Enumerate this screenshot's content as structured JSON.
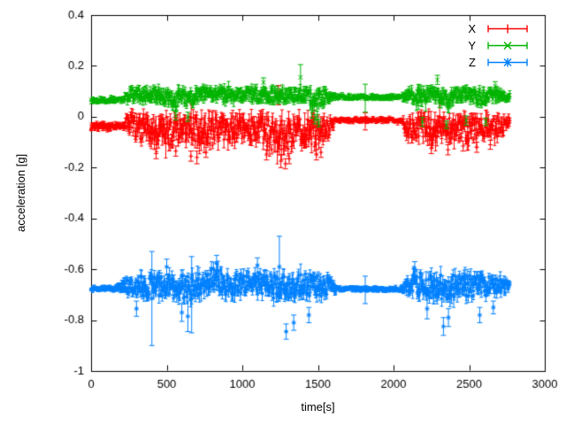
{
  "chart_data": {
    "type": "scatter",
    "style": "errorbars",
    "title": "",
    "xlabel": "time[s]",
    "ylabel": "acceleration [g]",
    "xlim": [
      0,
      3000
    ],
    "ylim": [
      -1,
      0.4
    ],
    "xticks": [
      0,
      500,
      1000,
      1500,
      2000,
      2500,
      3000
    ],
    "yticks": [
      0.4,
      0.2,
      0,
      -0.2,
      -0.4,
      -0.6,
      -0.8,
      -1
    ],
    "grid": false,
    "legend_position": "top-right-inside",
    "t_end": 2770,
    "sample_interval_s": 3.43,
    "axis_color": "#000000",
    "background": "#ffffff",
    "series": [
      {
        "name": "X",
        "color": "#ff0000",
        "marker": "plus",
        "seed": 7,
        "envelope": [
          [
            0,
            -0.038,
            0.013,
            0.009
          ],
          [
            215,
            -0.038,
            0.011,
            0.008
          ],
          [
            235,
            -0.028,
            0.028,
            0.018
          ],
          [
            265,
            -0.025,
            0.036,
            0.024
          ],
          [
            310,
            -0.047,
            0.046,
            0.03
          ],
          [
            360,
            -0.05,
            0.05,
            0.03
          ],
          [
            420,
            -0.06,
            0.055,
            0.034
          ],
          [
            480,
            -0.045,
            0.05,
            0.03
          ],
          [
            525,
            -0.065,
            0.058,
            0.034
          ],
          [
            565,
            -0.04,
            0.046,
            0.028
          ],
          [
            625,
            -0.055,
            0.054,
            0.03
          ],
          [
            680,
            -0.046,
            0.05,
            0.03
          ],
          [
            720,
            -0.068,
            0.06,
            0.034
          ],
          [
            765,
            -0.05,
            0.05,
            0.03
          ],
          [
            805,
            -0.06,
            0.054,
            0.03
          ],
          [
            860,
            -0.04,
            0.046,
            0.028
          ],
          [
            920,
            -0.05,
            0.05,
            0.03
          ],
          [
            980,
            -0.04,
            0.046,
            0.028
          ],
          [
            1040,
            -0.055,
            0.05,
            0.03
          ],
          [
            1100,
            -0.046,
            0.05,
            0.03
          ],
          [
            1160,
            -0.065,
            0.058,
            0.034
          ],
          [
            1225,
            -0.075,
            0.064,
            0.038
          ],
          [
            1270,
            -0.08,
            0.068,
            0.04
          ],
          [
            1325,
            -0.06,
            0.058,
            0.034
          ],
          [
            1385,
            -0.046,
            0.05,
            0.03
          ],
          [
            1445,
            -0.06,
            0.055,
            0.032
          ],
          [
            1505,
            -0.07,
            0.06,
            0.034
          ],
          [
            1560,
            -0.05,
            0.045,
            0.028
          ],
          [
            1598,
            -0.028,
            0.022,
            0.016
          ],
          [
            1615,
            -0.013,
            0.008,
            0.006
          ],
          [
            2055,
            -0.013,
            0.008,
            0.006
          ],
          [
            2080,
            -0.034,
            0.032,
            0.022
          ],
          [
            2135,
            -0.045,
            0.044,
            0.028
          ],
          [
            2200,
            -0.04,
            0.044,
            0.028
          ],
          [
            2265,
            -0.054,
            0.05,
            0.03
          ],
          [
            2325,
            -0.04,
            0.044,
            0.028
          ],
          [
            2385,
            -0.05,
            0.048,
            0.03
          ],
          [
            2445,
            -0.045,
            0.044,
            0.028
          ],
          [
            2505,
            -0.054,
            0.048,
            0.03
          ],
          [
            2565,
            -0.04,
            0.044,
            0.027
          ],
          [
            2625,
            -0.05,
            0.046,
            0.028
          ],
          [
            2685,
            -0.04,
            0.04,
            0.024
          ],
          [
            2735,
            -0.026,
            0.026,
            0.017
          ],
          [
            2770,
            -0.015,
            0.013,
            0.01
          ]
        ],
        "outliers": [
          [
            430,
            -0.145,
            0.02
          ],
          [
            560,
            -0.135,
            0.02
          ],
          [
            660,
            -0.155,
            0.02
          ],
          [
            700,
            -0.16,
            0.025
          ],
          [
            760,
            -0.14,
            0.02
          ],
          [
            1160,
            -0.15,
            0.02
          ],
          [
            1240,
            0.085,
            0.038
          ],
          [
            1255,
            -0.175,
            0.025
          ],
          [
            1285,
            -0.185,
            0.02
          ],
          [
            1310,
            -0.165,
            0.02
          ],
          [
            1490,
            -0.15,
            0.02
          ],
          [
            1520,
            -0.14,
            0.02
          ],
          [
            1813,
            -0.018,
            0.034
          ],
          [
            2250,
            -0.125,
            0.02
          ],
          [
            2360,
            -0.13,
            0.02
          ],
          [
            2460,
            -0.115,
            0.02
          ],
          [
            2550,
            -0.12,
            0.02
          ],
          [
            2640,
            -0.11,
            0.018
          ]
        ]
      },
      {
        "name": "Y",
        "color": "#00b400",
        "marker": "cross",
        "seed": 13,
        "envelope": [
          [
            0,
            0.065,
            0.009,
            0.006
          ],
          [
            215,
            0.065,
            0.009,
            0.006
          ],
          [
            240,
            0.085,
            0.02,
            0.012
          ],
          [
            300,
            0.09,
            0.025,
            0.014
          ],
          [
            365,
            0.086,
            0.026,
            0.014
          ],
          [
            425,
            0.09,
            0.028,
            0.015
          ],
          [
            485,
            0.08,
            0.028,
            0.015
          ],
          [
            545,
            0.068,
            0.032,
            0.017
          ],
          [
            565,
            0.06,
            0.036,
            0.019
          ],
          [
            585,
            0.084,
            0.026,
            0.014
          ],
          [
            645,
            0.068,
            0.034,
            0.018
          ],
          [
            705,
            0.09,
            0.025,
            0.014
          ],
          [
            765,
            0.086,
            0.027,
            0.014
          ],
          [
            825,
            0.09,
            0.026,
            0.014
          ],
          [
            885,
            0.085,
            0.027,
            0.015
          ],
          [
            945,
            0.09,
            0.025,
            0.014
          ],
          [
            1005,
            0.085,
            0.027,
            0.015
          ],
          [
            1065,
            0.088,
            0.026,
            0.014
          ],
          [
            1125,
            0.085,
            0.027,
            0.015
          ],
          [
            1185,
            0.082,
            0.028,
            0.015
          ],
          [
            1245,
            0.085,
            0.028,
            0.015
          ],
          [
            1305,
            0.088,
            0.026,
            0.014
          ],
          [
            1365,
            0.085,
            0.026,
            0.014
          ],
          [
            1425,
            0.082,
            0.028,
            0.015
          ],
          [
            1470,
            0.062,
            0.04,
            0.02
          ],
          [
            1495,
            0.046,
            0.046,
            0.022
          ],
          [
            1515,
            0.07,
            0.034,
            0.017
          ],
          [
            1560,
            0.084,
            0.024,
            0.014
          ],
          [
            1600,
            0.08,
            0.013,
            0.008
          ],
          [
            1618,
            0.077,
            0.008,
            0.005
          ],
          [
            2055,
            0.077,
            0.008,
            0.005
          ],
          [
            2080,
            0.082,
            0.02,
            0.012
          ],
          [
            2135,
            0.086,
            0.028,
            0.015
          ],
          [
            2192,
            0.07,
            0.038,
            0.019
          ],
          [
            2232,
            0.088,
            0.026,
            0.014
          ],
          [
            2292,
            0.085,
            0.028,
            0.015
          ],
          [
            2352,
            0.066,
            0.04,
            0.02
          ],
          [
            2402,
            0.088,
            0.026,
            0.014
          ],
          [
            2462,
            0.08,
            0.03,
            0.016
          ],
          [
            2522,
            0.088,
            0.026,
            0.014
          ],
          [
            2582,
            0.075,
            0.032,
            0.016
          ],
          [
            2642,
            0.088,
            0.026,
            0.014
          ],
          [
            2702,
            0.085,
            0.022,
            0.013
          ],
          [
            2742,
            0.08,
            0.015,
            0.01
          ],
          [
            2770,
            0.075,
            0.011,
            0.008
          ]
        ],
        "outliers": [
          [
            560,
            0.005,
            0.018
          ],
          [
            640,
            0.0,
            0.018
          ],
          [
            1140,
            0.135,
            0.018
          ],
          [
            1385,
            0.155,
            0.05
          ],
          [
            1480,
            -0.01,
            0.018
          ],
          [
            1505,
            -0.025,
            0.015
          ],
          [
            1813,
            0.073,
            0.055
          ],
          [
            2190,
            -0.02,
            0.018
          ],
          [
            2290,
            0.145,
            0.018
          ],
          [
            2350,
            -0.032,
            0.015
          ],
          [
            2480,
            -0.015,
            0.018
          ],
          [
            2610,
            -0.02,
            0.015
          ],
          [
            2672,
            0.12,
            0.018
          ]
        ]
      },
      {
        "name": "Z",
        "color": "#0080ff",
        "marker": "asterisk",
        "seed": 29,
        "envelope": [
          [
            0,
            -0.675,
            0.008,
            0.005
          ],
          [
            165,
            -0.675,
            0.009,
            0.006
          ],
          [
            235,
            -0.668,
            0.026,
            0.015
          ],
          [
            305,
            -0.665,
            0.04,
            0.022
          ],
          [
            365,
            -0.668,
            0.043,
            0.024
          ],
          [
            415,
            -0.672,
            0.046,
            0.025
          ],
          [
            475,
            -0.665,
            0.042,
            0.024
          ],
          [
            535,
            -0.67,
            0.045,
            0.025
          ],
          [
            605,
            -0.668,
            0.048,
            0.026
          ],
          [
            665,
            -0.672,
            0.048,
            0.026
          ],
          [
            725,
            -0.662,
            0.045,
            0.025
          ],
          [
            785,
            -0.642,
            0.045,
            0.025
          ],
          [
            835,
            -0.637,
            0.045,
            0.025
          ],
          [
            885,
            -0.655,
            0.045,
            0.025
          ],
          [
            945,
            -0.665,
            0.042,
            0.024
          ],
          [
            1005,
            -0.65,
            0.04,
            0.023
          ],
          [
            1065,
            -0.655,
            0.042,
            0.024
          ],
          [
            1125,
            -0.66,
            0.042,
            0.024
          ],
          [
            1185,
            -0.665,
            0.045,
            0.026
          ],
          [
            1245,
            -0.67,
            0.05,
            0.028
          ],
          [
            1305,
            -0.675,
            0.05,
            0.028
          ],
          [
            1365,
            -0.665,
            0.045,
            0.025
          ],
          [
            1425,
            -0.66,
            0.043,
            0.024
          ],
          [
            1485,
            -0.665,
            0.045,
            0.025
          ],
          [
            1545,
            -0.668,
            0.04,
            0.022
          ],
          [
            1595,
            -0.67,
            0.026,
            0.015
          ],
          [
            1635,
            -0.678,
            0.008,
            0.005
          ],
          [
            2050,
            -0.678,
            0.008,
            0.005
          ],
          [
            2080,
            -0.672,
            0.03,
            0.017
          ],
          [
            2135,
            -0.665,
            0.045,
            0.025
          ],
          [
            2195,
            -0.66,
            0.048,
            0.026
          ],
          [
            2255,
            -0.665,
            0.048,
            0.026
          ],
          [
            2315,
            -0.67,
            0.05,
            0.028
          ],
          [
            2375,
            -0.668,
            0.048,
            0.026
          ],
          [
            2435,
            -0.662,
            0.045,
            0.025
          ],
          [
            2495,
            -0.665,
            0.043,
            0.024
          ],
          [
            2555,
            -0.668,
            0.043,
            0.024
          ],
          [
            2615,
            -0.662,
            0.04,
            0.022
          ],
          [
            2675,
            -0.665,
            0.035,
            0.02
          ],
          [
            2725,
            -0.668,
            0.026,
            0.015
          ],
          [
            2770,
            -0.668,
            0.016,
            0.01
          ]
        ],
        "outliers": [
          [
            300,
            -0.755,
            0.03
          ],
          [
            402,
            -0.715,
            0.185
          ],
          [
            500,
            -0.59,
            0.03
          ],
          [
            600,
            -0.77,
            0.035
          ],
          [
            640,
            -0.785,
            0.06
          ],
          [
            665,
            -0.7,
            0.15
          ],
          [
            830,
            -0.575,
            0.03
          ],
          [
            1100,
            -0.585,
            0.03
          ],
          [
            1245,
            -0.59,
            0.12
          ],
          [
            1290,
            -0.845,
            0.03
          ],
          [
            1340,
            -0.81,
            0.03
          ],
          [
            1440,
            -0.78,
            0.03
          ],
          [
            1813,
            -0.681,
            0.054
          ],
          [
            2140,
            -0.6,
            0.03
          ],
          [
            2222,
            -0.755,
            0.04
          ],
          [
            2330,
            -0.825,
            0.035
          ],
          [
            2363,
            -0.79,
            0.035
          ],
          [
            2570,
            -0.78,
            0.03
          ],
          [
            2660,
            -0.75,
            0.025
          ]
        ]
      }
    ]
  }
}
